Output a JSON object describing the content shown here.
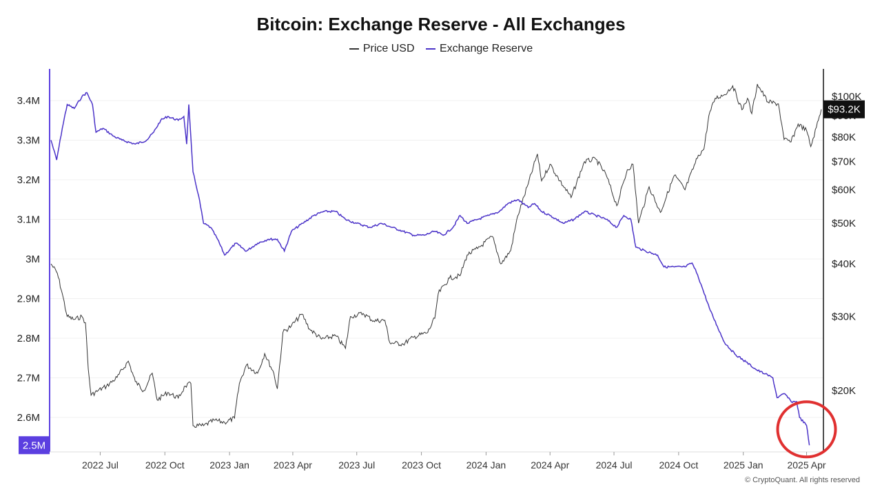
{
  "chart_data": {
    "type": "line",
    "title": "Bitcoin: Exchange Reserve - All Exchanges",
    "legend": {
      "position": "top-center",
      "items": [
        {
          "label": "Price USD",
          "color": "#333333"
        },
        {
          "label": "Exchange Reserve",
          "color": "#4a32c8"
        }
      ]
    },
    "grid": true,
    "x_axis": {
      "type": "date",
      "range": [
        "2022-04-20",
        "2025-04-25"
      ],
      "ticks": [
        {
          "date": "2022-07-01",
          "label": "2022 Jul"
        },
        {
          "date": "2022-10-01",
          "label": "2022 Oct"
        },
        {
          "date": "2023-01-01",
          "label": "2023 Jan"
        },
        {
          "date": "2023-04-01",
          "label": "2023 Apr"
        },
        {
          "date": "2023-07-01",
          "label": "2023 Jul"
        },
        {
          "date": "2023-10-01",
          "label": "2023 Oct"
        },
        {
          "date": "2024-01-01",
          "label": "2024 Jan"
        },
        {
          "date": "2024-04-01",
          "label": "2024 Apr"
        },
        {
          "date": "2024-07-01",
          "label": "2024 Jul"
        },
        {
          "date": "2024-10-01",
          "label": "2024 Oct"
        },
        {
          "date": "2025-01-01",
          "label": "2025 Jan"
        },
        {
          "date": "2025-04-01",
          "label": "2025 Apr"
        }
      ]
    },
    "y_left": {
      "label": "",
      "range": [
        2.5,
        3.5
      ],
      "ticks": [
        {
          "value": 3.4,
          "label": "3.4M"
        },
        {
          "value": 3.3,
          "label": "3.3M"
        },
        {
          "value": 3.2,
          "label": "3.2M"
        },
        {
          "value": 3.1,
          "label": "3.1M"
        },
        {
          "value": 3.0,
          "label": "3M"
        },
        {
          "value": 2.9,
          "label": "2.9M"
        },
        {
          "value": 2.8,
          "label": "2.8M"
        },
        {
          "value": 2.7,
          "label": "2.7M"
        },
        {
          "value": 2.6,
          "label": "2.6M"
        }
      ],
      "current_label": {
        "value": 2.53,
        "text": "2.5M",
        "color": "#5b3fe0"
      }
    },
    "y_right": {
      "label": "",
      "scale": "log",
      "range": [
        16000,
        118000
      ],
      "ticks": [
        {
          "value": 100000,
          "label": "$100K"
        },
        {
          "value": 90000,
          "label": "$90K"
        },
        {
          "value": 80000,
          "label": "$80K"
        },
        {
          "value": 70000,
          "label": "$70K"
        },
        {
          "value": 60000,
          "label": "$60K"
        },
        {
          "value": 50000,
          "label": "$50K"
        },
        {
          "value": 40000,
          "label": "$40K"
        },
        {
          "value": 30000,
          "label": "$30K"
        },
        {
          "value": 20000,
          "label": "$20K"
        }
      ],
      "current_label": {
        "value": 93200,
        "text": "$93.2K",
        "color": "#111111"
      }
    },
    "series": [
      {
        "name": "Exchange Reserve",
        "axis": "left",
        "unit": "M BTC",
        "color": "#4a32c8",
        "points": [
          [
            "2022-04-22",
            3.3
          ],
          [
            "2022-04-30",
            3.25
          ],
          [
            "2022-05-08",
            3.33
          ],
          [
            "2022-05-15",
            3.39
          ],
          [
            "2022-05-25",
            3.38
          ],
          [
            "2022-06-05",
            3.41
          ],
          [
            "2022-06-12",
            3.42
          ],
          [
            "2022-06-20",
            3.39
          ],
          [
            "2022-06-25",
            3.32
          ],
          [
            "2022-07-05",
            3.33
          ],
          [
            "2022-07-20",
            3.31
          ],
          [
            "2022-08-01",
            3.3
          ],
          [
            "2022-08-20",
            3.29
          ],
          [
            "2022-09-05",
            3.3
          ],
          [
            "2022-09-15",
            3.32
          ],
          [
            "2022-09-25",
            3.35
          ],
          [
            "2022-10-05",
            3.36
          ],
          [
            "2022-10-20",
            3.35
          ],
          [
            "2022-10-28",
            3.36
          ],
          [
            "2022-11-01",
            3.29
          ],
          [
            "2022-11-04",
            3.39
          ],
          [
            "2022-11-10",
            3.22
          ],
          [
            "2022-11-18",
            3.16
          ],
          [
            "2022-11-25",
            3.09
          ],
          [
            "2022-12-05",
            3.08
          ],
          [
            "2022-12-15",
            3.05
          ],
          [
            "2022-12-25",
            3.01
          ],
          [
            "2023-01-10",
            3.04
          ],
          [
            "2023-01-25",
            3.02
          ],
          [
            "2023-02-10",
            3.04
          ],
          [
            "2023-02-25",
            3.05
          ],
          [
            "2023-03-10",
            3.05
          ],
          [
            "2023-03-20",
            3.02
          ],
          [
            "2023-03-30",
            3.07
          ],
          [
            "2023-04-15",
            3.09
          ],
          [
            "2023-05-01",
            3.11
          ],
          [
            "2023-05-15",
            3.12
          ],
          [
            "2023-06-01",
            3.12
          ],
          [
            "2023-06-15",
            3.1
          ],
          [
            "2023-07-01",
            3.09
          ],
          [
            "2023-07-20",
            3.08
          ],
          [
            "2023-08-05",
            3.09
          ],
          [
            "2023-08-20",
            3.08
          ],
          [
            "2023-09-05",
            3.07
          ],
          [
            "2023-09-20",
            3.06
          ],
          [
            "2023-10-05",
            3.06
          ],
          [
            "2023-10-20",
            3.07
          ],
          [
            "2023-11-01",
            3.06
          ],
          [
            "2023-11-15",
            3.08
          ],
          [
            "2023-11-25",
            3.11
          ],
          [
            "2023-12-05",
            3.09
          ],
          [
            "2023-12-20",
            3.1
          ],
          [
            "2024-01-05",
            3.11
          ],
          [
            "2024-01-20",
            3.12
          ],
          [
            "2024-02-01",
            3.14
          ],
          [
            "2024-02-15",
            3.15
          ],
          [
            "2024-03-01",
            3.13
          ],
          [
            "2024-03-10",
            3.14
          ],
          [
            "2024-03-20",
            3.12
          ],
          [
            "2024-04-01",
            3.11
          ],
          [
            "2024-04-20",
            3.09
          ],
          [
            "2024-05-05",
            3.1
          ],
          [
            "2024-05-20",
            3.12
          ],
          [
            "2024-06-05",
            3.11
          ],
          [
            "2024-06-20",
            3.1
          ],
          [
            "2024-07-05",
            3.08
          ],
          [
            "2024-07-15",
            3.11
          ],
          [
            "2024-07-25",
            3.1
          ],
          [
            "2024-08-01",
            3.03
          ],
          [
            "2024-08-15",
            3.02
          ],
          [
            "2024-09-01",
            3.01
          ],
          [
            "2024-09-10",
            2.98
          ],
          [
            "2024-09-25",
            2.98
          ],
          [
            "2024-10-10",
            2.98
          ],
          [
            "2024-10-20",
            2.99
          ],
          [
            "2024-10-28",
            2.96
          ],
          [
            "2024-11-05",
            2.92
          ],
          [
            "2024-11-15",
            2.87
          ],
          [
            "2024-11-25",
            2.83
          ],
          [
            "2024-12-05",
            2.79
          ],
          [
            "2024-12-20",
            2.76
          ],
          [
            "2025-01-05",
            2.74
          ],
          [
            "2025-01-20",
            2.72
          ],
          [
            "2025-02-01",
            2.71
          ],
          [
            "2025-02-12",
            2.7
          ],
          [
            "2025-02-18",
            2.65
          ],
          [
            "2025-03-01",
            2.66
          ],
          [
            "2025-03-10",
            2.64
          ],
          [
            "2025-03-18",
            2.64
          ],
          [
            "2025-03-22",
            2.6
          ],
          [
            "2025-04-01",
            2.58
          ],
          [
            "2025-04-05",
            2.53
          ]
        ]
      },
      {
        "name": "Price USD",
        "axis": "right",
        "unit": "USD",
        "color": "#333333",
        "points": [
          [
            "2022-04-22",
            40000
          ],
          [
            "2022-05-01",
            38000
          ],
          [
            "2022-05-08",
            34000
          ],
          [
            "2022-05-15",
            30000
          ],
          [
            "2022-05-25",
            29500
          ],
          [
            "2022-06-05",
            30000
          ],
          [
            "2022-06-10",
            29000
          ],
          [
            "2022-06-14",
            22500
          ],
          [
            "2022-06-18",
            19500
          ],
          [
            "2022-06-28",
            20000
          ],
          [
            "2022-07-10",
            20500
          ],
          [
            "2022-07-25",
            21500
          ],
          [
            "2022-08-10",
            23500
          ],
          [
            "2022-08-20",
            21000
          ],
          [
            "2022-09-01",
            20000
          ],
          [
            "2022-09-13",
            22000
          ],
          [
            "2022-09-20",
            19000
          ],
          [
            "2022-10-05",
            19800
          ],
          [
            "2022-10-20",
            19200
          ],
          [
            "2022-10-30",
            20500
          ],
          [
            "2022-11-07",
            20800
          ],
          [
            "2022-11-10",
            16500
          ],
          [
            "2022-11-25",
            16500
          ],
          [
            "2022-12-10",
            17000
          ],
          [
            "2022-12-25",
            16800
          ],
          [
            "2023-01-08",
            17200
          ],
          [
            "2023-01-15",
            20800
          ],
          [
            "2023-01-25",
            23000
          ],
          [
            "2023-02-10",
            22000
          ],
          [
            "2023-02-20",
            24500
          ],
          [
            "2023-03-05",
            22000
          ],
          [
            "2023-03-10",
            20200
          ],
          [
            "2023-03-18",
            27500
          ],
          [
            "2023-03-30",
            28500
          ],
          [
            "2023-04-14",
            30400
          ],
          [
            "2023-04-25",
            28000
          ],
          [
            "2023-05-12",
            26500
          ],
          [
            "2023-06-01",
            27000
          ],
          [
            "2023-06-15",
            25200
          ],
          [
            "2023-06-22",
            30000
          ],
          [
            "2023-07-10",
            30500
          ],
          [
            "2023-07-25",
            29300
          ],
          [
            "2023-08-10",
            29400
          ],
          [
            "2023-08-17",
            26000
          ],
          [
            "2023-09-05",
            25800
          ],
          [
            "2023-09-20",
            26800
          ],
          [
            "2023-10-10",
            27500
          ],
          [
            "2023-10-20",
            29700
          ],
          [
            "2023-10-25",
            34000
          ],
          [
            "2023-11-10",
            37000
          ],
          [
            "2023-11-25",
            37500
          ],
          [
            "2023-12-05",
            42000
          ],
          [
            "2023-12-20",
            43500
          ],
          [
            "2024-01-10",
            46500
          ],
          [
            "2024-01-22",
            40000
          ],
          [
            "2024-02-05",
            43000
          ],
          [
            "2024-02-15",
            52000
          ],
          [
            "2024-03-01",
            62000
          ],
          [
            "2024-03-14",
            73000
          ],
          [
            "2024-03-20",
            63000
          ],
          [
            "2024-04-01",
            69000
          ],
          [
            "2024-04-15",
            63000
          ],
          [
            "2024-05-01",
            57500
          ],
          [
            "2024-05-20",
            70000
          ],
          [
            "2024-06-05",
            71000
          ],
          [
            "2024-06-20",
            65000
          ],
          [
            "2024-07-05",
            55000
          ],
          [
            "2024-07-20",
            67000
          ],
          [
            "2024-07-28",
            69000
          ],
          [
            "2024-08-05",
            50000
          ],
          [
            "2024-08-20",
            61000
          ],
          [
            "2024-09-05",
            53000
          ],
          [
            "2024-09-25",
            65000
          ],
          [
            "2024-10-10",
            60000
          ],
          [
            "2024-10-29",
            72500
          ],
          [
            "2024-11-06",
            75000
          ],
          [
            "2024-11-13",
            90000
          ],
          [
            "2024-11-22",
            99000
          ],
          [
            "2024-12-05",
            101000
          ],
          [
            "2024-12-17",
            106000
          ],
          [
            "2024-12-30",
            93000
          ],
          [
            "2025-01-07",
            99000
          ],
          [
            "2025-01-13",
            91000
          ],
          [
            "2025-01-21",
            107000
          ],
          [
            "2025-02-05",
            97000
          ],
          [
            "2025-02-20",
            96000
          ],
          [
            "2025-02-28",
            79000
          ],
          [
            "2025-03-10",
            78000
          ],
          [
            "2025-03-20",
            86000
          ],
          [
            "2025-04-01",
            83000
          ],
          [
            "2025-04-07",
            76000
          ],
          [
            "2025-04-15",
            84500
          ],
          [
            "2025-04-22",
            93200
          ]
        ]
      }
    ],
    "annotations": [
      {
        "type": "circle",
        "color": "#e03030",
        "around_date": "2025-04-01",
        "around_value": 2.57
      }
    ],
    "credit": "© CryptoQuant. All rights reserved"
  }
}
